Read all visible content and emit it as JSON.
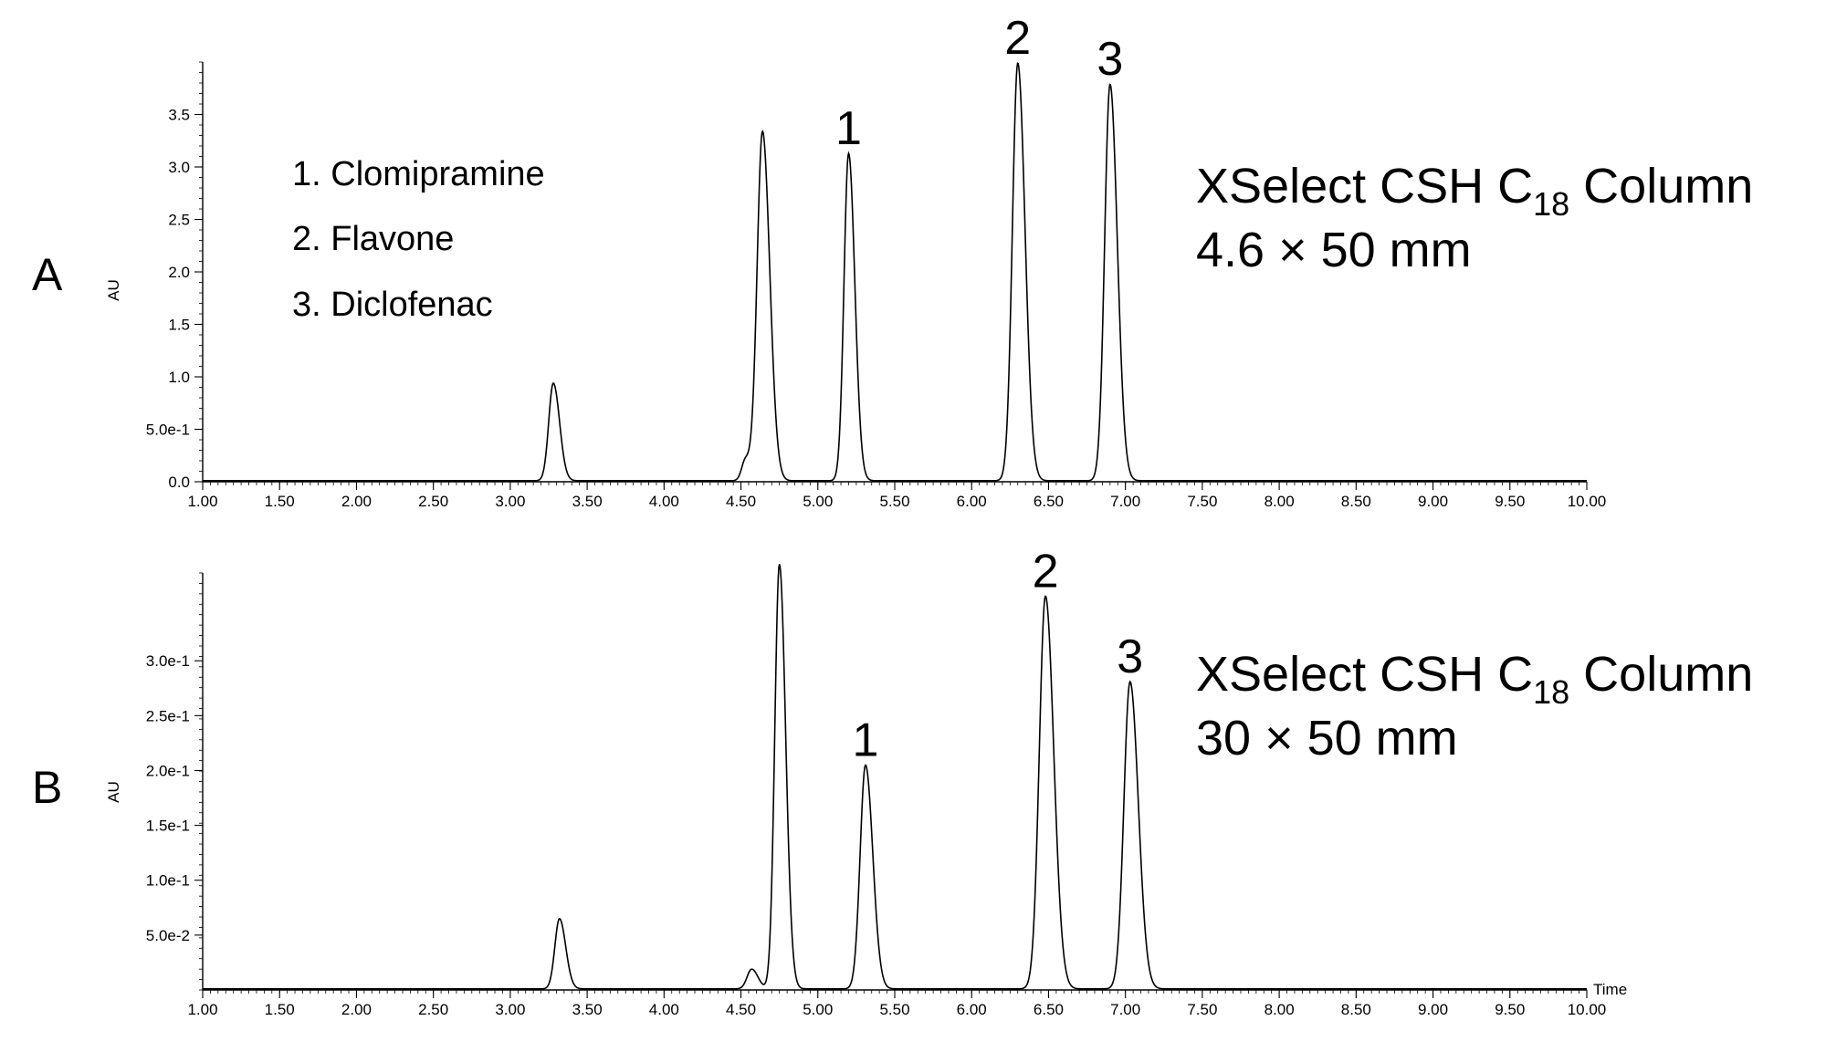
{
  "chart_data": [
    {
      "type": "line",
      "panel_label": "A",
      "ylabel": "AU",
      "xlabel": "",
      "xlim": [
        1.0,
        10.0
      ],
      "ylim": [
        0.0,
        4.0
      ],
      "x_ticks": [
        "1.00",
        "1.50",
        "2.00",
        "2.50",
        "3.00",
        "3.50",
        "4.00",
        "4.50",
        "5.00",
        "5.50",
        "6.00",
        "6.50",
        "7.00",
        "7.50",
        "8.00",
        "8.50",
        "9.00",
        "9.50",
        "10.00"
      ],
      "y_ticks": [
        {
          "value": 0.0,
          "label": "0.0"
        },
        {
          "value": 0.5,
          "label": "5.0e-1"
        },
        {
          "value": 1.0,
          "label": "1.0"
        },
        {
          "value": 1.5,
          "label": "1.5"
        },
        {
          "value": 2.0,
          "label": "2.0"
        },
        {
          "value": 2.5,
          "label": "2.5"
        },
        {
          "value": 3.0,
          "label": "3.0"
        },
        {
          "value": 3.5,
          "label": "3.5"
        }
      ],
      "legend": [
        "1. Clomipramine",
        "2. Flavone",
        "3. Diclofenac"
      ],
      "column_name": "XSelect CSH C",
      "column_sub": "18",
      "column_suffix": " Column",
      "column_size": "4.6 × 50 mm",
      "baseline": 0.01,
      "peaks": [
        {
          "x": 3.28,
          "y": 0.93,
          "w": 0.03,
          "label": ""
        },
        {
          "x": 4.53,
          "y": 0.2,
          "w": 0.025,
          "label": ""
        },
        {
          "x": 4.64,
          "y": 3.33,
          "w": 0.035,
          "label": ""
        },
        {
          "x": 5.2,
          "y": 3.12,
          "w": 0.03,
          "label": "1"
        },
        {
          "x": 6.3,
          "y": 3.98,
          "w": 0.035,
          "label": "2"
        },
        {
          "x": 6.9,
          "y": 3.78,
          "w": 0.035,
          "label": "3"
        }
      ]
    },
    {
      "type": "line",
      "panel_label": "B",
      "ylabel": "AU",
      "xlabel": "Time",
      "xlim": [
        1.0,
        10.0
      ],
      "ylim": [
        0.0,
        0.38
      ],
      "x_ticks": [
        "1.00",
        "1.50",
        "2.00",
        "2.50",
        "3.00",
        "3.50",
        "4.00",
        "4.50",
        "5.00",
        "5.50",
        "6.00",
        "6.50",
        "7.00",
        "7.50",
        "8.00",
        "8.50",
        "9.00",
        "9.50",
        "10.00"
      ],
      "y_ticks": [
        {
          "value": 0.05,
          "label": "5.0e-2"
        },
        {
          "value": 0.1,
          "label": "1.0e-1"
        },
        {
          "value": 0.15,
          "label": "1.5e-1"
        },
        {
          "value": 0.2,
          "label": "2.0e-1"
        },
        {
          "value": 0.25,
          "label": "2.5e-1"
        },
        {
          "value": 0.3,
          "label": "3.0e-1"
        }
      ],
      "column_name": "XSelect CSH C",
      "column_sub": "18",
      "column_suffix": " Column",
      "column_size": "30 × 50 mm",
      "baseline": 0.001,
      "peaks": [
        {
          "x": 3.32,
          "y": 0.064,
          "w": 0.03,
          "label": ""
        },
        {
          "x": 4.57,
          "y": 0.018,
          "w": 0.03,
          "label": ""
        },
        {
          "x": 4.75,
          "y": 0.387,
          "w": 0.03,
          "label": ""
        },
        {
          "x": 5.31,
          "y": 0.204,
          "w": 0.035,
          "label": "1"
        },
        {
          "x": 6.48,
          "y": 0.358,
          "w": 0.04,
          "label": "2"
        },
        {
          "x": 7.03,
          "y": 0.28,
          "w": 0.04,
          "label": "3"
        }
      ]
    }
  ]
}
